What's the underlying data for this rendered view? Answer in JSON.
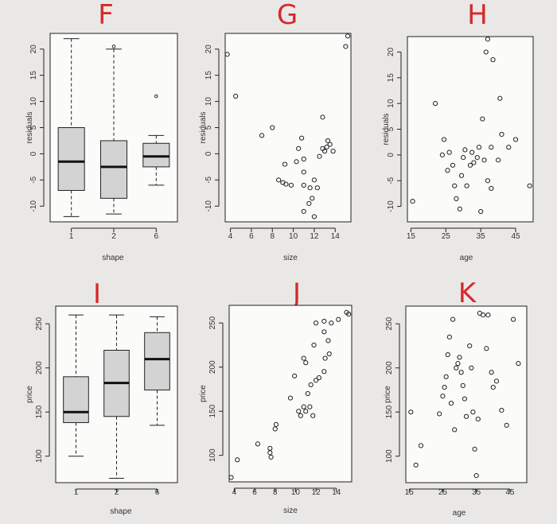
{
  "chart_data": [
    {
      "letter": "F",
      "type": "box",
      "ylabel": "residuals",
      "xlabel": "shape",
      "categories": [
        "1",
        "2",
        "6"
      ],
      "ylim": [
        -13,
        23
      ],
      "yticks": [
        -10,
        -5,
        0,
        5,
        10,
        15,
        20
      ],
      "boxes": [
        {
          "q1": -7,
          "median": -1.5,
          "q3": 5,
          "lo": -12,
          "hi": 22
        },
        {
          "q1": -8.5,
          "median": -2.5,
          "q3": 2.5,
          "lo": -11.5,
          "hi": 20
        },
        {
          "q1": -2.5,
          "median": -0.5,
          "q3": 2,
          "lo": -6,
          "hi": 3.5
        }
      ],
      "outliers": [
        {
          "cat": "2",
          "y": 20.5
        },
        {
          "cat": "6",
          "y": 11
        }
      ]
    },
    {
      "letter": "G",
      "type": "scatter",
      "ylabel": "residuals",
      "xlabel": "size",
      "xlim": [
        3.5,
        15.5
      ],
      "xticks": [
        4,
        6,
        8,
        10,
        12,
        14
      ],
      "ylim": [
        -13,
        23
      ],
      "yticks": [
        -10,
        -5,
        0,
        5,
        10,
        15,
        20
      ],
      "points": [
        [
          3.7,
          19
        ],
        [
          4.5,
          11
        ],
        [
          7,
          3.5
        ],
        [
          8,
          5
        ],
        [
          8.6,
          -5
        ],
        [
          9,
          -5.5
        ],
        [
          9.3,
          -5.8
        ],
        [
          9.8,
          -6
        ],
        [
          9.2,
          -2
        ],
        [
          10.3,
          -1.5
        ],
        [
          11,
          -1
        ],
        [
          10.5,
          1
        ],
        [
          10.8,
          3
        ],
        [
          11,
          -6
        ],
        [
          11.6,
          -6.5
        ],
        [
          12,
          -5
        ],
        [
          12.3,
          -6.5
        ],
        [
          11.8,
          -8.5
        ],
        [
          11.5,
          -9.5
        ],
        [
          11,
          -11
        ],
        [
          12,
          -12
        ],
        [
          11,
          -3.5
        ],
        [
          12.5,
          -0.5
        ],
        [
          12.8,
          1
        ],
        [
          13.2,
          1.3
        ],
        [
          13.5,
          1.8
        ],
        [
          13,
          0.5
        ],
        [
          13.3,
          2.5
        ],
        [
          13.8,
          0.5
        ],
        [
          12.8,
          7
        ],
        [
          15,
          20.5
        ],
        [
          15.2,
          22.5
        ]
      ]
    },
    {
      "letter": "H",
      "type": "scatter",
      "ylabel": "residuals",
      "xlabel": "age",
      "xlim": [
        14,
        50
      ],
      "xticks": [
        15,
        25,
        35,
        45
      ],
      "ylim": [
        -13,
        23
      ],
      "yticks": [
        -10,
        -5,
        0,
        5,
        10,
        15,
        20
      ],
      "points": [
        [
          15.5,
          -9
        ],
        [
          22,
          10
        ],
        [
          24,
          0
        ],
        [
          24.5,
          3
        ],
        [
          25.5,
          -3
        ],
        [
          26,
          0.5
        ],
        [
          27,
          -2
        ],
        [
          28,
          -8.5
        ],
        [
          29,
          -10.5
        ],
        [
          27.5,
          -6
        ],
        [
          29.5,
          -4
        ],
        [
          30,
          -0.5
        ],
        [
          30.5,
          1
        ],
        [
          31,
          -6
        ],
        [
          32,
          -2
        ],
        [
          32.5,
          0.5
        ],
        [
          33,
          -1.5
        ],
        [
          34,
          -0.5
        ],
        [
          34.5,
          1.5
        ],
        [
          35,
          -11
        ],
        [
          36,
          -1
        ],
        [
          37,
          -5
        ],
        [
          38,
          -6.5
        ],
        [
          38,
          1.5
        ],
        [
          40,
          -1
        ],
        [
          41,
          4
        ],
        [
          43,
          1.5
        ],
        [
          45,
          3
        ],
        [
          49,
          -6
        ],
        [
          35.5,
          7
        ],
        [
          38.5,
          18.5
        ],
        [
          40.5,
          11
        ],
        [
          36.5,
          20
        ],
        [
          37,
          22.5
        ]
      ]
    },
    {
      "letter": "I",
      "type": "box",
      "ylabel": "price",
      "xlabel": "shape",
      "categories": [
        "1",
        "2",
        "6"
      ],
      "ylim": [
        70,
        270
      ],
      "yticks": [
        100,
        150,
        200,
        250
      ],
      "boxes": [
        {
          "q1": 138,
          "median": 150,
          "q3": 190,
          "lo": 100,
          "hi": 260
        },
        {
          "q1": 145,
          "median": 183,
          "q3": 220,
          "lo": 75,
          "hi": 260
        },
        {
          "q1": 175,
          "median": 210,
          "q3": 240,
          "lo": 135,
          "hi": 258
        }
      ],
      "outliers": []
    },
    {
      "letter": "J",
      "type": "scatter",
      "ylabel": "price",
      "xlabel": "size",
      "xlim": [
        3.5,
        15.5
      ],
      "xticks": [
        4,
        6,
        8,
        10,
        12,
        14
      ],
      "ylim": [
        70,
        270
      ],
      "yticks": [
        100,
        150,
        200,
        250
      ],
      "points": [
        [
          3.7,
          75
        ],
        [
          4.3,
          95
        ],
        [
          6.3,
          113
        ],
        [
          7.5,
          108
        ],
        [
          7.5,
          103
        ],
        [
          7.6,
          98
        ],
        [
          8,
          130
        ],
        [
          8.1,
          135
        ],
        [
          9.5,
          165
        ],
        [
          10.3,
          150
        ],
        [
          10.5,
          145
        ],
        [
          10.8,
          155
        ],
        [
          11,
          150
        ],
        [
          11.4,
          155
        ],
        [
          11.7,
          145
        ],
        [
          11.2,
          170
        ],
        [
          11.5,
          180
        ],
        [
          12,
          185
        ],
        [
          12.3,
          188
        ],
        [
          12.8,
          195
        ],
        [
          13.3,
          215
        ],
        [
          10.8,
          210
        ],
        [
          11,
          205
        ],
        [
          11.8,
          225
        ],
        [
          12.8,
          240
        ],
        [
          13.2,
          230
        ],
        [
          13.5,
          250
        ],
        [
          12.8,
          252
        ],
        [
          12,
          250
        ],
        [
          15,
          262
        ],
        [
          15.2,
          260
        ],
        [
          14.2,
          254
        ],
        [
          12.9,
          210
        ],
        [
          9.9,
          190
        ]
      ]
    },
    {
      "letter": "K",
      "type": "scatter",
      "ylabel": "price",
      "xlabel": "age",
      "xlim": [
        14,
        50
      ],
      "xticks": [
        15,
        25,
        35,
        45
      ],
      "ylim": [
        70,
        270
      ],
      "yticks": [
        100,
        150,
        200,
        250
      ],
      "points": [
        [
          15.5,
          150
        ],
        [
          17,
          90
        ],
        [
          18.5,
          112
        ],
        [
          24,
          148
        ],
        [
          25,
          168
        ],
        [
          25.5,
          178
        ],
        [
          26,
          190
        ],
        [
          26.5,
          215
        ],
        [
          27,
          235
        ],
        [
          27.5,
          160
        ],
        [
          28.5,
          130
        ],
        [
          29,
          200
        ],
        [
          29.5,
          205
        ],
        [
          30,
          212
        ],
        [
          30.5,
          195
        ],
        [
          31,
          180
        ],
        [
          31.5,
          165
        ],
        [
          32,
          145
        ],
        [
          33,
          225
        ],
        [
          33.5,
          200
        ],
        [
          34,
          150
        ],
        [
          34.5,
          108
        ],
        [
          35,
          78
        ],
        [
          35.5,
          142
        ],
        [
          36,
          262
        ],
        [
          37,
          260
        ],
        [
          38,
          222
        ],
        [
          38.5,
          260
        ],
        [
          39.5,
          195
        ],
        [
          40,
          178
        ],
        [
          41,
          185
        ],
        [
          42.5,
          152
        ],
        [
          44,
          135
        ],
        [
          46,
          255
        ],
        [
          47.5,
          205
        ],
        [
          28,
          255
        ]
      ]
    }
  ]
}
